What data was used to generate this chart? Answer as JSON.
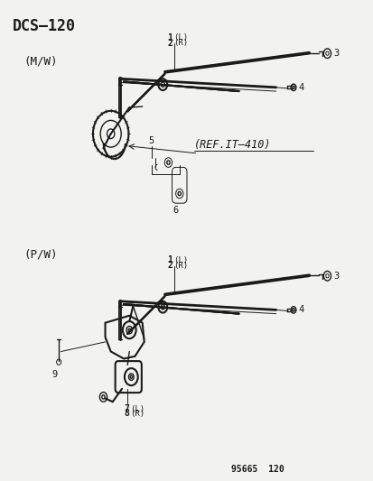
{
  "title": "DCS–120",
  "bg_color": "#f2f2ee",
  "fg_color": "#1a1a1a",
  "figsize": [
    4.14,
    5.33
  ],
  "dpi": 100,
  "top_label": "(M/W)",
  "bottom_label": "(P/W)",
  "ref_text": "(REF.IT–410)",
  "footer": "95665  120",
  "top_lr": [
    "(L)",
    "(R)"
  ],
  "bottom_lr1": [
    "(L)",
    "(R)"
  ],
  "bottom_lr2": [
    "(L)",
    "(R)"
  ]
}
